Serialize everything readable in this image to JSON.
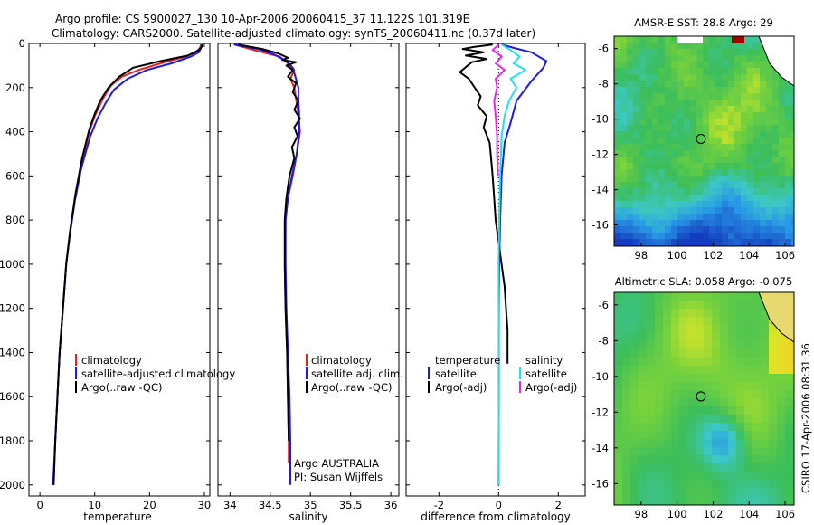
{
  "header": {
    "line1": "Argo profile: CS 5900027_130 10-Apr-2006 20060415_37 11.122S 101.319E",
    "line2": "Climatology: CARS2000. Satellite-adjusted climatology: synTS_20060411.nc (0.37d later)"
  },
  "side_stamp": "CSIRO 17-Apr-2006 08:31:36",
  "colors": {
    "climatology": "#e8201a",
    "satellite": "#1a1aee",
    "argo": "#000000",
    "cyan": "#22e0ee",
    "magenta": "#ee22ee"
  },
  "chart_data": [
    {
      "type": "line",
      "id": "temperature",
      "xlabel": "temperature",
      "xlim": [
        -2,
        31
      ],
      "ylim": [
        2050,
        0
      ],
      "y_inverted": true,
      "xticks": [
        "0",
        "10",
        "20",
        "30"
      ],
      "yticks": [
        "0",
        "200",
        "400",
        "600",
        "800",
        "1000",
        "1200",
        "1400",
        "1600",
        "1800",
        "2000"
      ],
      "legend": [
        "climatology",
        "satellite-adjusted climatology",
        "Argo(..raw -QC)"
      ],
      "series": [
        {
          "name": "climatology",
          "color": "climatology",
          "points": [
            [
              29.4,
              5
            ],
            [
              29.2,
              20
            ],
            [
              28.5,
              40
            ],
            [
              26.5,
              60
            ],
            [
              22,
              90
            ],
            [
              18,
              120
            ],
            [
              15,
              150
            ],
            [
              13,
              190
            ],
            [
              11.5,
              250
            ],
            [
              10,
              330
            ],
            [
              9,
              400
            ],
            [
              7.5,
              550
            ],
            [
              6.4,
              700
            ],
            [
              5.5,
              850
            ],
            [
              4.8,
              1000
            ],
            [
              4.2,
              1200
            ],
            [
              3.6,
              1400
            ],
            [
              3.2,
              1600
            ],
            [
              2.8,
              1800
            ],
            [
              2.5,
              2000
            ]
          ]
        },
        {
          "name": "satellite-adjusted climatology",
          "color": "satellite",
          "points": [
            [
              29.5,
              5
            ],
            [
              29.4,
              20
            ],
            [
              29,
              40
            ],
            [
              27.5,
              60
            ],
            [
              24,
              90
            ],
            [
              19.5,
              120
            ],
            [
              16,
              160
            ],
            [
              13.5,
              210
            ],
            [
              12,
              270
            ],
            [
              10.5,
              340
            ],
            [
              9.2,
              420
            ],
            [
              7.6,
              560
            ],
            [
              6.4,
              710
            ],
            [
              5.5,
              860
            ],
            [
              4.8,
              1000
            ],
            [
              4.2,
              1200
            ],
            [
              3.6,
              1400
            ],
            [
              3.2,
              1600
            ],
            [
              2.8,
              1800
            ],
            [
              2.4,
              2000
            ]
          ]
        },
        {
          "name": "Argo(..raw -QC)",
          "color": "argo",
          "points": [
            [
              29.6,
              5
            ],
            [
              29.5,
              15
            ],
            [
              29,
              30
            ],
            [
              27,
              55
            ],
            [
              22,
              80
            ],
            [
              17,
              110
            ],
            [
              14.5,
              150
            ],
            [
              12.5,
              200
            ],
            [
              11,
              260
            ],
            [
              10,
              320
            ],
            [
              9,
              390
            ],
            [
              7.7,
              520
            ],
            [
              6.5,
              680
            ],
            [
              5.5,
              850
            ],
            [
              4.8,
              1000
            ],
            [
              4.2,
              1200
            ],
            [
              3.6,
              1400
            ],
            [
              3.2,
              1600
            ],
            [
              2.8,
              1800
            ],
            [
              2.5,
              2000
            ]
          ]
        }
      ]
    },
    {
      "type": "line",
      "id": "salinity",
      "xlabel": "salinity",
      "xlim": [
        33.85,
        36.1
      ],
      "ylim": [
        2050,
        0
      ],
      "y_inverted": true,
      "xticks": [
        "34",
        "34.5",
        "35",
        "35.5",
        "36"
      ],
      "legend": [
        "climatology",
        "satellite adj. clim.",
        "Argo(..raw -QC)"
      ],
      "annotation": [
        "Argo AUSTRALIA",
        "PI: Susan Wijffels"
      ],
      "series": [
        {
          "name": "climatology",
          "color": "climatology",
          "points": [
            [
              34.05,
              5
            ],
            [
              34.3,
              30
            ],
            [
              34.62,
              60
            ],
            [
              34.72,
              90
            ],
            [
              34.8,
              120
            ],
            [
              34.75,
              160
            ],
            [
              34.8,
              200
            ],
            [
              34.82,
              250
            ],
            [
              34.85,
              320
            ],
            [
              34.87,
              400
            ],
            [
              34.83,
              500
            ],
            [
              34.78,
              600
            ],
            [
              34.72,
              700
            ],
            [
              34.69,
              800
            ],
            [
              34.68,
              1000
            ],
            [
              34.69,
              1200
            ],
            [
              34.71,
              1400
            ],
            [
              34.72,
              1600
            ],
            [
              34.73,
              1800
            ],
            [
              34.73,
              1900
            ]
          ]
        },
        {
          "name": "satellite adj. clim.",
          "color": "satellite",
          "points": [
            [
              34.05,
              5
            ],
            [
              34.35,
              25
            ],
            [
              34.55,
              50
            ],
            [
              34.7,
              80
            ],
            [
              34.78,
              110
            ],
            [
              34.82,
              160
            ],
            [
              34.85,
              200
            ],
            [
              34.85,
              260
            ],
            [
              34.86,
              320
            ],
            [
              34.86,
              400
            ],
            [
              34.83,
              500
            ],
            [
              34.77,
              600
            ],
            [
              34.72,
              700
            ],
            [
              34.69,
              800
            ],
            [
              34.69,
              1000
            ],
            [
              34.7,
              1200
            ],
            [
              34.72,
              1400
            ],
            [
              34.74,
              1600
            ],
            [
              34.75,
              1800
            ],
            [
              34.75,
              2000
            ]
          ]
        },
        {
          "name": "Argo(..raw -QC)",
          "color": "argo",
          "points": [
            [
              34.1,
              5
            ],
            [
              34.4,
              25
            ],
            [
              34.6,
              45
            ],
            [
              34.72,
              65
            ],
            [
              34.65,
              75
            ],
            [
              34.82,
              85
            ],
            [
              34.7,
              100
            ],
            [
              34.78,
              120
            ],
            [
              34.72,
              150
            ],
            [
              34.82,
              180
            ],
            [
              34.78,
              220
            ],
            [
              34.85,
              260
            ],
            [
              34.8,
              300
            ],
            [
              34.87,
              340
            ],
            [
              34.8,
              380
            ],
            [
              34.84,
              420
            ],
            [
              34.77,
              470
            ],
            [
              34.8,
              520
            ],
            [
              34.74,
              600
            ],
            [
              34.7,
              700
            ],
            [
              34.68,
              800
            ],
            [
              34.68,
              1000
            ],
            [
              34.69,
              1200
            ],
            [
              34.71,
              1400
            ],
            [
              34.72,
              1600
            ],
            [
              34.73,
              1800
            ]
          ]
        }
      ]
    },
    {
      "type": "line",
      "id": "difference",
      "xlabel": "difference from climatology",
      "xlim": [
        -3.1,
        2.9
      ],
      "ylim": [
        2050,
        0
      ],
      "y_inverted": true,
      "xticks": [
        "-2",
        "0",
        "2"
      ],
      "legend_left": [
        "temperature",
        "satellite",
        "Argo(-adj)"
      ],
      "legend_right": [
        "salinity",
        "satellite",
        "Argo(-adj)"
      ],
      "series": [
        {
          "name": "temperature satellite",
          "color": "satellite",
          "points": [
            [
              0.1,
              5
            ],
            [
              0.5,
              20
            ],
            [
              1.1,
              40
            ],
            [
              1.6,
              80
            ],
            [
              1.5,
              110
            ],
            [
              1.1,
              170
            ],
            [
              0.6,
              260
            ],
            [
              0.4,
              360
            ],
            [
              0.2,
              450
            ],
            [
              0.1,
              600
            ],
            [
              0.05,
              800
            ],
            [
              0.02,
              1000
            ],
            [
              0.01,
              1200
            ],
            [
              0.01,
              1600
            ],
            [
              0,
              2000
            ]
          ]
        },
        {
          "name": "temperature Argo(-adj)",
          "color": "argo",
          "points": [
            [
              -0.2,
              5
            ],
            [
              -0.8,
              15
            ],
            [
              -1.2,
              25
            ],
            [
              -0.5,
              40
            ],
            [
              -1.1,
              55
            ],
            [
              -0.4,
              70
            ],
            [
              -0.9,
              85
            ],
            [
              -1.3,
              130
            ],
            [
              -1.0,
              160
            ],
            [
              -0.8,
              200
            ],
            [
              -0.6,
              240
            ],
            [
              -0.7,
              280
            ],
            [
              -0.4,
              330
            ],
            [
              -0.5,
              380
            ],
            [
              -0.3,
              450
            ],
            [
              -0.25,
              520
            ],
            [
              -0.2,
              600
            ],
            [
              -0.15,
              700
            ],
            [
              -0.1,
              800
            ],
            [
              0.0,
              900
            ],
            [
              0.1,
              1000
            ],
            [
              0.2,
              1100
            ],
            [
              0.25,
              1200
            ],
            [
              0.3,
              1300
            ],
            [
              0.3,
              1450
            ]
          ]
        },
        {
          "name": "salinity satellite",
          "color": "cyan",
          "points": [
            [
              0.1,
              5
            ],
            [
              0.4,
              30
            ],
            [
              0.7,
              60
            ],
            [
              0.5,
              90
            ],
            [
              0.9,
              120
            ],
            [
              0.4,
              160
            ],
            [
              0.6,
              200
            ],
            [
              0.35,
              260
            ],
            [
              0.2,
              330
            ],
            [
              0.1,
              420
            ],
            [
              0.05,
              600
            ],
            [
              0.02,
              800
            ],
            [
              0.0,
              1000
            ],
            [
              0.01,
              1500
            ],
            [
              0.0,
              2000
            ]
          ]
        },
        {
          "name": "salinity Argo(-adj)",
          "color": "magenta",
          "points": [
            [
              0.0,
              5
            ],
            [
              -0.2,
              30
            ],
            [
              0.1,
              60
            ],
            [
              -0.1,
              90
            ],
            [
              0.2,
              120
            ],
            [
              -0.1,
              160
            ],
            [
              -0.05,
              200
            ],
            [
              -0.15,
              260
            ],
            [
              -0.1,
              330
            ],
            [
              -0.05,
              420
            ],
            [
              -0.05,
              500
            ],
            [
              -0.02,
              600
            ]
          ]
        }
      ]
    }
  ],
  "maps": [
    {
      "id": "sst-map",
      "title": "AMSR-E SST: 28.8 Argo: 29",
      "xticks": [
        "98",
        "100",
        "102",
        "104",
        "106"
      ],
      "yticks": [
        "-6",
        "-8",
        "-10",
        "-12",
        "-14",
        "-16"
      ],
      "xlim": [
        96.5,
        106.5
      ],
      "ylim": [
        -17.2,
        -5.3
      ],
      "argo_position": [
        101.32,
        -11.12
      ],
      "style": "blocky"
    },
    {
      "id": "sla-map",
      "title": "Altimetric SLA: 0.058 Argo: -0.075",
      "xticks": [
        "98",
        "100",
        "102",
        "104",
        "106"
      ],
      "yticks": [
        "-6",
        "-8",
        "-10",
        "-12",
        "-14",
        "-16"
      ],
      "xlim": [
        96.5,
        106.5
      ],
      "ylim": [
        -17.2,
        -5.3
      ],
      "argo_position": [
        101.32,
        -11.12
      ],
      "style": "smooth"
    }
  ]
}
